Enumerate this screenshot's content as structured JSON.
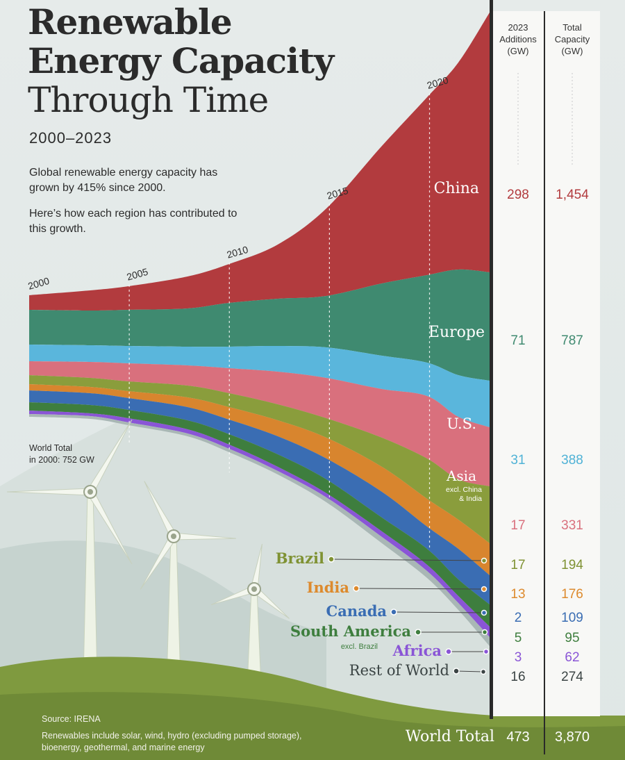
{
  "header": {
    "title_line1": "Renewable",
    "title_line2": "Energy Capacity",
    "title_line3": "Through Time",
    "subtitle": "2000–2023",
    "intro_1": "Global renewable energy capacity has grown by 415% since 2000.",
    "intro_2": "Here’s how each region has contributed to this growth."
  },
  "annotation": {
    "line1": "World Total",
    "line2": "in 2000: 752 GW"
  },
  "columns": {
    "additions_header": [
      "2023",
      "Additions",
      "(GW)"
    ],
    "total_header": [
      "Total",
      "Capacity",
      "(GW)"
    ]
  },
  "footer": {
    "source": "Source: IRENA",
    "note_line1": "Renewables include solar, wind, hydro (excluding pumped storage),",
    "note_line2": "bioenergy, geothermal, and marine energy"
  },
  "chart_data": {
    "type": "area",
    "title": "Renewable Energy Capacity Through Time",
    "x_range": [
      2000,
      2023
    ],
    "year_ticks": [
      {
        "year": 2000,
        "label": "2000"
      },
      {
        "year": 2005,
        "label": "2005"
      },
      {
        "year": 2010,
        "label": "2010"
      },
      {
        "year": 2015,
        "label": "2015"
      },
      {
        "year": 2020,
        "label": "2020"
      }
    ],
    "world_total_2000_gw": 752,
    "series": [
      {
        "name": "China",
        "sublabel": "",
        "additions_2023": "298",
        "total_2023": "1,454",
        "color": "#b23b3e",
        "label_color": "#ffffff",
        "value_color": "#b23b3e"
      },
      {
        "name": "Europe",
        "sublabel": "",
        "additions_2023": "71",
        "total_2023": "787",
        "color": "#3f8a70",
        "label_color": "#ffffff",
        "value_color": "#3f8a70"
      },
      {
        "name": "U.S.",
        "sublabel": "",
        "additions_2023": "31",
        "total_2023": "388",
        "color": "#5ab6dc",
        "label_color": "#ffffff",
        "value_color": "#4fb2d6"
      },
      {
        "name": "Asia",
        "sublabel": "excl. China & India",
        "additions_2023": "17",
        "total_2023": "331",
        "color": "#d9707d",
        "label_color": "#ffffff",
        "value_color": "#d9707d"
      },
      {
        "name": "Brazil",
        "sublabel": "",
        "additions_2023": "17",
        "total_2023": "194",
        "color": "#8a9d3c",
        "label_color": "#7f9233",
        "value_color": "#7f9233"
      },
      {
        "name": "India",
        "sublabel": "",
        "additions_2023": "13",
        "total_2023": "176",
        "color": "#d8852e",
        "label_color": "#dd8a2d",
        "value_color": "#dd8a2d"
      },
      {
        "name": "Canada",
        "sublabel": "",
        "additions_2023": "2",
        "total_2023": "109",
        "color": "#3a6db3",
        "label_color": "#3a6db3",
        "value_color": "#3a6db3"
      },
      {
        "name": "South America",
        "sublabel": "excl. Brazil",
        "additions_2023": "5",
        "total_2023": "95",
        "color": "#3e7e3e",
        "label_color": "#3e7e3e",
        "value_color": "#3e7e3e"
      },
      {
        "name": "Africa",
        "sublabel": "",
        "additions_2023": "3",
        "total_2023": "62",
        "color": "#8a55d6",
        "label_color": "#8a55d6",
        "value_color": "#8a55d6"
      },
      {
        "name": "Rest of World",
        "sublabel": "",
        "additions_2023": "16",
        "total_2023": "274",
        "color": "#a9b7b5",
        "label_color": "#3b4444",
        "value_color": "#3b4444"
      }
    ],
    "world_total": {
      "label": "World Total",
      "additions_2023": "473",
      "total_2023": "3,870"
    }
  }
}
